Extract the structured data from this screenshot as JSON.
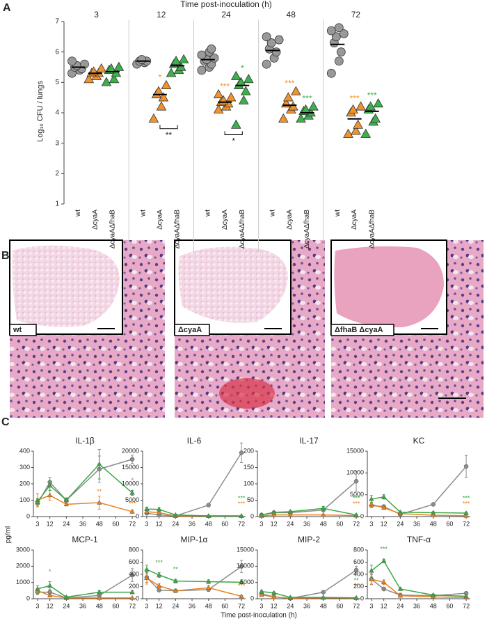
{
  "panel_labels": [
    "A",
    "B",
    "C"
  ],
  "histology": {
    "labels": [
      "wt",
      "ΔcyaA",
      "ΔfhaB ΔcyaA"
    ]
  },
  "cytokine_axes": {
    "x_label": "Time post-inoculation (h)",
    "y_label": "pg/ml"
  },
  "chart_data": [
    {
      "type": "dotplot",
      "title": "Time post-inoculation (h)",
      "y_label": "Log₁₀ CFU / lungs",
      "groups": [
        "3",
        "12",
        "24",
        "48",
        "72"
      ],
      "categories": [
        "wt",
        "ΔcyaA",
        "ΔcyaAΔfhaB"
      ],
      "ylim": [
        1,
        7
      ],
      "yticks": [
        1,
        2,
        3,
        4,
        5,
        6,
        7
      ],
      "series": [
        {
          "color": "#999999",
          "marker": "circle",
          "values": [
            [
              5.3,
              5.4,
              5.45,
              5.5,
              5.55,
              5.6,
              5.7
            ],
            [
              5.6,
              5.65,
              5.7,
              5.7,
              5.75
            ],
            [
              5.4,
              5.5,
              5.6,
              5.7,
              5.75,
              5.8,
              5.9,
              6.0,
              6.1
            ],
            [
              5.6,
              5.8,
              6.0,
              6.1,
              6.3,
              6.4,
              6.5
            ],
            [
              5.3,
              5.7,
              6.0,
              6.3,
              6.5,
              6.6,
              6.7,
              6.8
            ]
          ],
          "means": [
            5.5,
            5.7,
            5.75,
            6.05,
            6.25
          ],
          "stars": [
            null,
            null,
            null,
            null,
            null
          ]
        },
        {
          "color": "#f0922e",
          "marker": "triangle",
          "values": [
            [
              5.1,
              5.2,
              5.3,
              5.3,
              5.35,
              5.45
            ],
            [
              3.8,
              4.2,
              4.5,
              4.6,
              4.7,
              4.9
            ],
            [
              4.1,
              4.2,
              4.3,
              4.35,
              4.4,
              4.5,
              4.6
            ],
            [
              3.8,
              4.1,
              4.2,
              4.3,
              4.5,
              4.7
            ],
            [
              3.3,
              3.4,
              3.6,
              4.0,
              4.1,
              4.2
            ]
          ],
          "means": [
            5.3,
            4.6,
            4.35,
            4.25,
            3.8
          ],
          "stars": [
            null,
            "*",
            "***",
            "***",
            "***"
          ]
        },
        {
          "color": "#3cb04a",
          "marker": "triangle",
          "values": [
            [
              5.0,
              5.1,
              5.3,
              5.4,
              5.45,
              5.5
            ],
            [
              5.3,
              5.4,
              5.5,
              5.6,
              5.7,
              5.75
            ],
            [
              3.6,
              4.4,
              4.7,
              4.9,
              5.0,
              5.1,
              5.2
            ],
            [
              3.8,
              3.9,
              4.0,
              4.05,
              4.1,
              4.2
            ],
            [
              3.3,
              3.7,
              3.8,
              4.1,
              4.2,
              4.3
            ]
          ],
          "means": [
            5.35,
            5.55,
            4.9,
            4.0,
            4.05
          ],
          "stars": [
            null,
            null,
            "*",
            "***",
            "***"
          ]
        }
      ],
      "brackets": [
        null,
        "**",
        "*",
        null,
        null
      ]
    },
    {
      "type": "line",
      "title": "IL-1β",
      "x": [
        3,
        12,
        24,
        48,
        72
      ],
      "xlim": [
        0,
        75
      ],
      "xticks": [
        3,
        12,
        24,
        36,
        48,
        60,
        72
      ],
      "ylim": [
        0,
        400
      ],
      "yticks": [
        0,
        100,
        200,
        300,
        400
      ],
      "series": [
        {
          "color": "#8c8c8c",
          "marker": "circle",
          "values": [
            80,
            210,
            100,
            290,
            350
          ],
          "errors": [
            20,
            30,
            15,
            80,
            25
          ],
          "stars": [
            null,
            null,
            null,
            null,
            null
          ]
        },
        {
          "color": "#e8821e",
          "marker": "triangle",
          "values": [
            100,
            130,
            75,
            85,
            30
          ],
          "errors": [
            40,
            30,
            10,
            40,
            10
          ],
          "stars": [
            null,
            null,
            null,
            "**",
            "***"
          ]
        },
        {
          "color": "#3aa845",
          "marker": "triangle",
          "values": [
            90,
            190,
            100,
            320,
            145
          ],
          "errors": [
            20,
            30,
            10,
            90,
            15
          ],
          "stars": [
            null,
            null,
            null,
            null,
            "*"
          ]
        }
      ]
    },
    {
      "type": "line",
      "title": "IL-6",
      "x": [
        3,
        12,
        24,
        48,
        72
      ],
      "xlim": [
        0,
        75
      ],
      "xticks": [
        3,
        12,
        24,
        36,
        48,
        60,
        72
      ],
      "ylim": [
        0,
        20000
      ],
      "yticks": [
        0,
        5000,
        10000,
        15000,
        20000
      ],
      "series": [
        {
          "color": "#8c8c8c",
          "marker": "circle",
          "values": [
            1000,
            500,
            200,
            3500,
            19500
          ],
          "errors": [
            300,
            200,
            100,
            500,
            3000
          ],
          "stars": [
            null,
            null,
            null,
            null,
            null
          ]
        },
        {
          "color": "#e8821e",
          "marker": "triangle",
          "values": [
            1500,
            1200,
            200,
            200,
            200
          ],
          "errors": [
            500,
            300,
            100,
            100,
            100
          ],
          "stars": [
            null,
            null,
            null,
            null,
            "***"
          ]
        },
        {
          "color": "#3aa845",
          "marker": "triangle",
          "values": [
            2300,
            2200,
            500,
            200,
            200
          ],
          "errors": [
            600,
            500,
            200,
            100,
            100
          ],
          "stars": [
            null,
            null,
            null,
            null,
            "***"
          ]
        }
      ]
    },
    {
      "type": "line",
      "title": "IL-17",
      "x": [
        3,
        12,
        24,
        48,
        72
      ],
      "xlim": [
        0,
        75
      ],
      "xticks": [
        3,
        12,
        24,
        36,
        48,
        60,
        72
      ],
      "ylim": [
        0,
        200
      ],
      "yticks": [
        0,
        50,
        100,
        150,
        200
      ],
      "series": [
        {
          "color": "#8c8c8c",
          "marker": "circle",
          "values": [
            5,
            12,
            12,
            20,
            108
          ],
          "errors": [
            2,
            3,
            3,
            5,
            30
          ],
          "stars": [
            null,
            null,
            null,
            null,
            null
          ]
        },
        {
          "color": "#e8821e",
          "marker": "triangle",
          "values": [
            2,
            5,
            5,
            5,
            3
          ],
          "errors": [
            1,
            2,
            2,
            2,
            1
          ],
          "stars": [
            null,
            null,
            null,
            null,
            "***"
          ]
        },
        {
          "color": "#3aa845",
          "marker": "triangle",
          "values": [
            5,
            13,
            15,
            25,
            5
          ],
          "errors": [
            2,
            3,
            3,
            6,
            2
          ],
          "stars": [
            null,
            null,
            null,
            null,
            "***"
          ]
        }
      ]
    },
    {
      "type": "line",
      "title": "KC",
      "x": [
        3,
        12,
        24,
        48,
        72
      ],
      "xlim": [
        0,
        75
      ],
      "xticks": [
        3,
        12,
        24,
        36,
        48,
        60,
        72
      ],
      "ylim": [
        0,
        15000
      ],
      "yticks": [
        0,
        5000,
        10000,
        15000
      ],
      "series": [
        {
          "color": "#8c8c8c",
          "marker": "circle",
          "values": [
            2500,
            2300,
            500,
            2800,
            11500
          ],
          "errors": [
            400,
            300,
            100,
            300,
            2500
          ],
          "stars": [
            null,
            null,
            null,
            null,
            null
          ]
        },
        {
          "color": "#e8821e",
          "marker": "triangle",
          "values": [
            2800,
            2000,
            700,
            300,
            200
          ],
          "errors": [
            500,
            300,
            200,
            100,
            100
          ],
          "stars": [
            null,
            null,
            null,
            null,
            "***"
          ]
        },
        {
          "color": "#3aa845",
          "marker": "triangle",
          "values": [
            4000,
            4500,
            1000,
            900,
            800
          ],
          "errors": [
            800,
            500,
            200,
            200,
            200
          ],
          "stars": [
            null,
            null,
            null,
            null,
            "***"
          ]
        }
      ]
    },
    {
      "type": "line",
      "title": "MCP-1",
      "x": [
        3,
        12,
        24,
        48,
        72
      ],
      "xlim": [
        0,
        75
      ],
      "xticks": [
        3,
        12,
        24,
        36,
        48,
        60,
        72
      ],
      "ylim": [
        0,
        3000
      ],
      "yticks": [
        0,
        1000,
        2000,
        3000
      ],
      "series": [
        {
          "color": "#8c8c8c",
          "marker": "circle",
          "values": [
            400,
            400,
            50,
            200,
            1450
          ],
          "errors": [
            150,
            150,
            20,
            50,
            400
          ],
          "stars": [
            null,
            null,
            null,
            null,
            null
          ]
        },
        {
          "color": "#e8821e",
          "marker": "triangle",
          "values": [
            500,
            200,
            50,
            50,
            50
          ],
          "errors": [
            150,
            80,
            20,
            20,
            20
          ],
          "stars": [
            null,
            null,
            null,
            null,
            null
          ]
        },
        {
          "color": "#3aa845",
          "marker": "triangle",
          "values": [
            600,
            800,
            100,
            400,
            400
          ],
          "errors": [
            200,
            250,
            30,
            100,
            100
          ],
          "stars": [
            null,
            "*",
            null,
            null,
            null
          ]
        }
      ]
    },
    {
      "type": "line",
      "title": "MIP-1α",
      "x": [
        3,
        12,
        24,
        48,
        72
      ],
      "xlim": [
        0,
        75
      ],
      "xticks": [
        3,
        12,
        24,
        36,
        48,
        60,
        72
      ],
      "ylim": [
        0,
        800
      ],
      "yticks": [
        0,
        200,
        400,
        600,
        800
      ],
      "series": [
        {
          "color": "#8c8c8c",
          "marker": "circle",
          "values": [
            350,
            140,
            130,
            150,
            530
          ],
          "errors": [
            80,
            20,
            15,
            30,
            100
          ],
          "stars": [
            null,
            null,
            null,
            null,
            null
          ]
        },
        {
          "color": "#e8821e",
          "marker": "triangle",
          "values": [
            340,
            210,
            130,
            180,
            40
          ],
          "errors": [
            100,
            40,
            20,
            40,
            10
          ],
          "stars": [
            null,
            null,
            null,
            null,
            "***"
          ]
        },
        {
          "color": "#3aa845",
          "marker": "triangle",
          "values": [
            480,
            390,
            290,
            280,
            270
          ],
          "errors": [
            70,
            40,
            30,
            30,
            20
          ],
          "stars": [
            null,
            "***",
            "**",
            null,
            null
          ]
        }
      ]
    },
    {
      "type": "line",
      "title": "MIP-2",
      "x": [
        3,
        12,
        24,
        48,
        72
      ],
      "xlim": [
        0,
        75
      ],
      "xticks": [
        3,
        12,
        24,
        36,
        48,
        60,
        72
      ],
      "ylim": [
        0,
        15000
      ],
      "yticks": [
        0,
        5000,
        10000,
        15000
      ],
      "series": [
        {
          "color": "#8c8c8c",
          "marker": "circle",
          "values": [
            1500,
            600,
            100,
            2000,
            8800
          ],
          "errors": [
            300,
            200,
            50,
            300,
            1200
          ],
          "stars": [
            null,
            null,
            null,
            null,
            null
          ]
        },
        {
          "color": "#e8821e",
          "marker": "triangle",
          "values": [
            1200,
            500,
            200,
            300,
            200
          ],
          "errors": [
            300,
            150,
            50,
            80,
            50
          ],
          "stars": [
            null,
            null,
            null,
            null,
            "**"
          ]
        },
        {
          "color": "#3aa845",
          "marker": "triangle",
          "values": [
            2200,
            1800,
            400,
            400,
            300
          ],
          "errors": [
            400,
            300,
            100,
            100,
            80
          ],
          "stars": [
            null,
            null,
            null,
            null,
            "**"
          ]
        }
      ]
    },
    {
      "type": "line",
      "title": "TNF-α",
      "x": [
        3,
        12,
        24,
        48,
        72
      ],
      "xlim": [
        0,
        75
      ],
      "xticks": [
        3,
        12,
        24,
        36,
        48,
        60,
        72
      ],
      "ylim": [
        0,
        800
      ],
      "yticks": [
        0,
        200,
        400,
        600,
        800
      ],
      "series": [
        {
          "color": "#8c8c8c",
          "marker": "circle",
          "values": [
            320,
            160,
            60,
            50,
            90
          ],
          "errors": [
            80,
            30,
            15,
            15,
            20
          ],
          "stars": [
            null,
            null,
            null,
            null,
            null
          ]
        },
        {
          "color": "#e8821e",
          "marker": "triangle",
          "values": [
            320,
            270,
            50,
            30,
            20
          ],
          "errors": [
            90,
            40,
            15,
            10,
            8
          ],
          "stars": [
            null,
            null,
            null,
            null,
            null
          ]
        },
        {
          "color": "#3aa845",
          "marker": "triangle",
          "values": [
            460,
            620,
            160,
            60,
            40
          ],
          "errors": [
            90,
            30,
            20,
            15,
            10
          ],
          "stars": [
            null,
            "***",
            null,
            null,
            null
          ]
        }
      ]
    }
  ]
}
